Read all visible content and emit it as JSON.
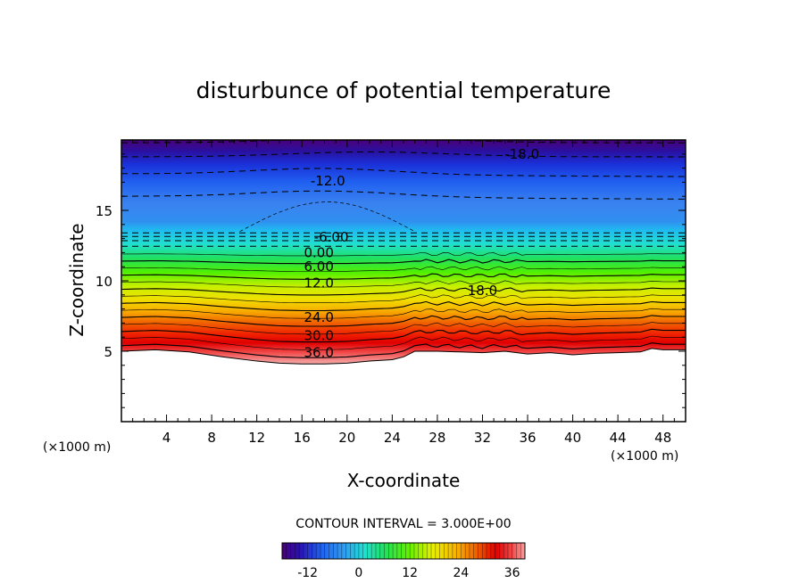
{
  "chart_data": {
    "type": "heatmap",
    "title": "disturbunce of potential temperature",
    "xlabel": "X-coordinate",
    "ylabel": "Z-coordinate",
    "x_unit": "(×1000 m)",
    "y_unit": "(×1000 m)",
    "xlim": [
      0,
      50
    ],
    "ylim": [
      0,
      20
    ],
    "x_ticks": [
      4,
      8,
      12,
      16,
      20,
      24,
      28,
      32,
      36,
      40,
      44,
      48
    ],
    "y_ticks": [
      5,
      10,
      15
    ],
    "contour_interval_label": "CONTOUR INTERVAL = 3.000E+00",
    "colorbar": {
      "ticks": [
        -12,
        0,
        12,
        24,
        36
      ],
      "range": [
        -18,
        39
      ]
    },
    "surface_profile": {
      "x": [
        0,
        3,
        6,
        9,
        12,
        14,
        16,
        18,
        20,
        22,
        24,
        25,
        26,
        28,
        30,
        32,
        34,
        36,
        38,
        40,
        42,
        44,
        46,
        47,
        48,
        50
      ],
      "z": [
        5.0,
        5.1,
        4.95,
        4.6,
        4.3,
        4.15,
        4.1,
        4.1,
        4.15,
        4.3,
        4.4,
        4.6,
        5.0,
        5.0,
        4.95,
        4.9,
        5.0,
        4.8,
        4.9,
        4.75,
        4.85,
        4.9,
        4.95,
        5.2,
        5.1,
        5.1
      ]
    },
    "dashed_contours_z": [
      19.8,
      18.8,
      17.6,
      16.0,
      13.4,
      13.15,
      12.85,
      12.45
    ],
    "contour_labels": [
      {
        "text": "-18.0",
        "x": 35.5,
        "z": 19.0
      },
      {
        "text": "-12.0",
        "x": 18.3,
        "z": 17.1
      },
      {
        "text": "-6.00",
        "x": 18.6,
        "z": 13.1
      },
      {
        "text": "0.00",
        "x": 17.5,
        "z": 12.0
      },
      {
        "text": "6.00",
        "x": 17.5,
        "z": 11.0
      },
      {
        "text": "12.0",
        "x": 17.5,
        "z": 9.85
      },
      {
        "text": "18.0",
        "x": 32.0,
        "z": 9.3
      },
      {
        "text": "24.0",
        "x": 17.5,
        "z": 7.4
      },
      {
        "text": "30.0",
        "x": 17.5,
        "z": 6.1
      },
      {
        "text": "36.0",
        "x": 17.5,
        "z": 4.9
      }
    ]
  }
}
